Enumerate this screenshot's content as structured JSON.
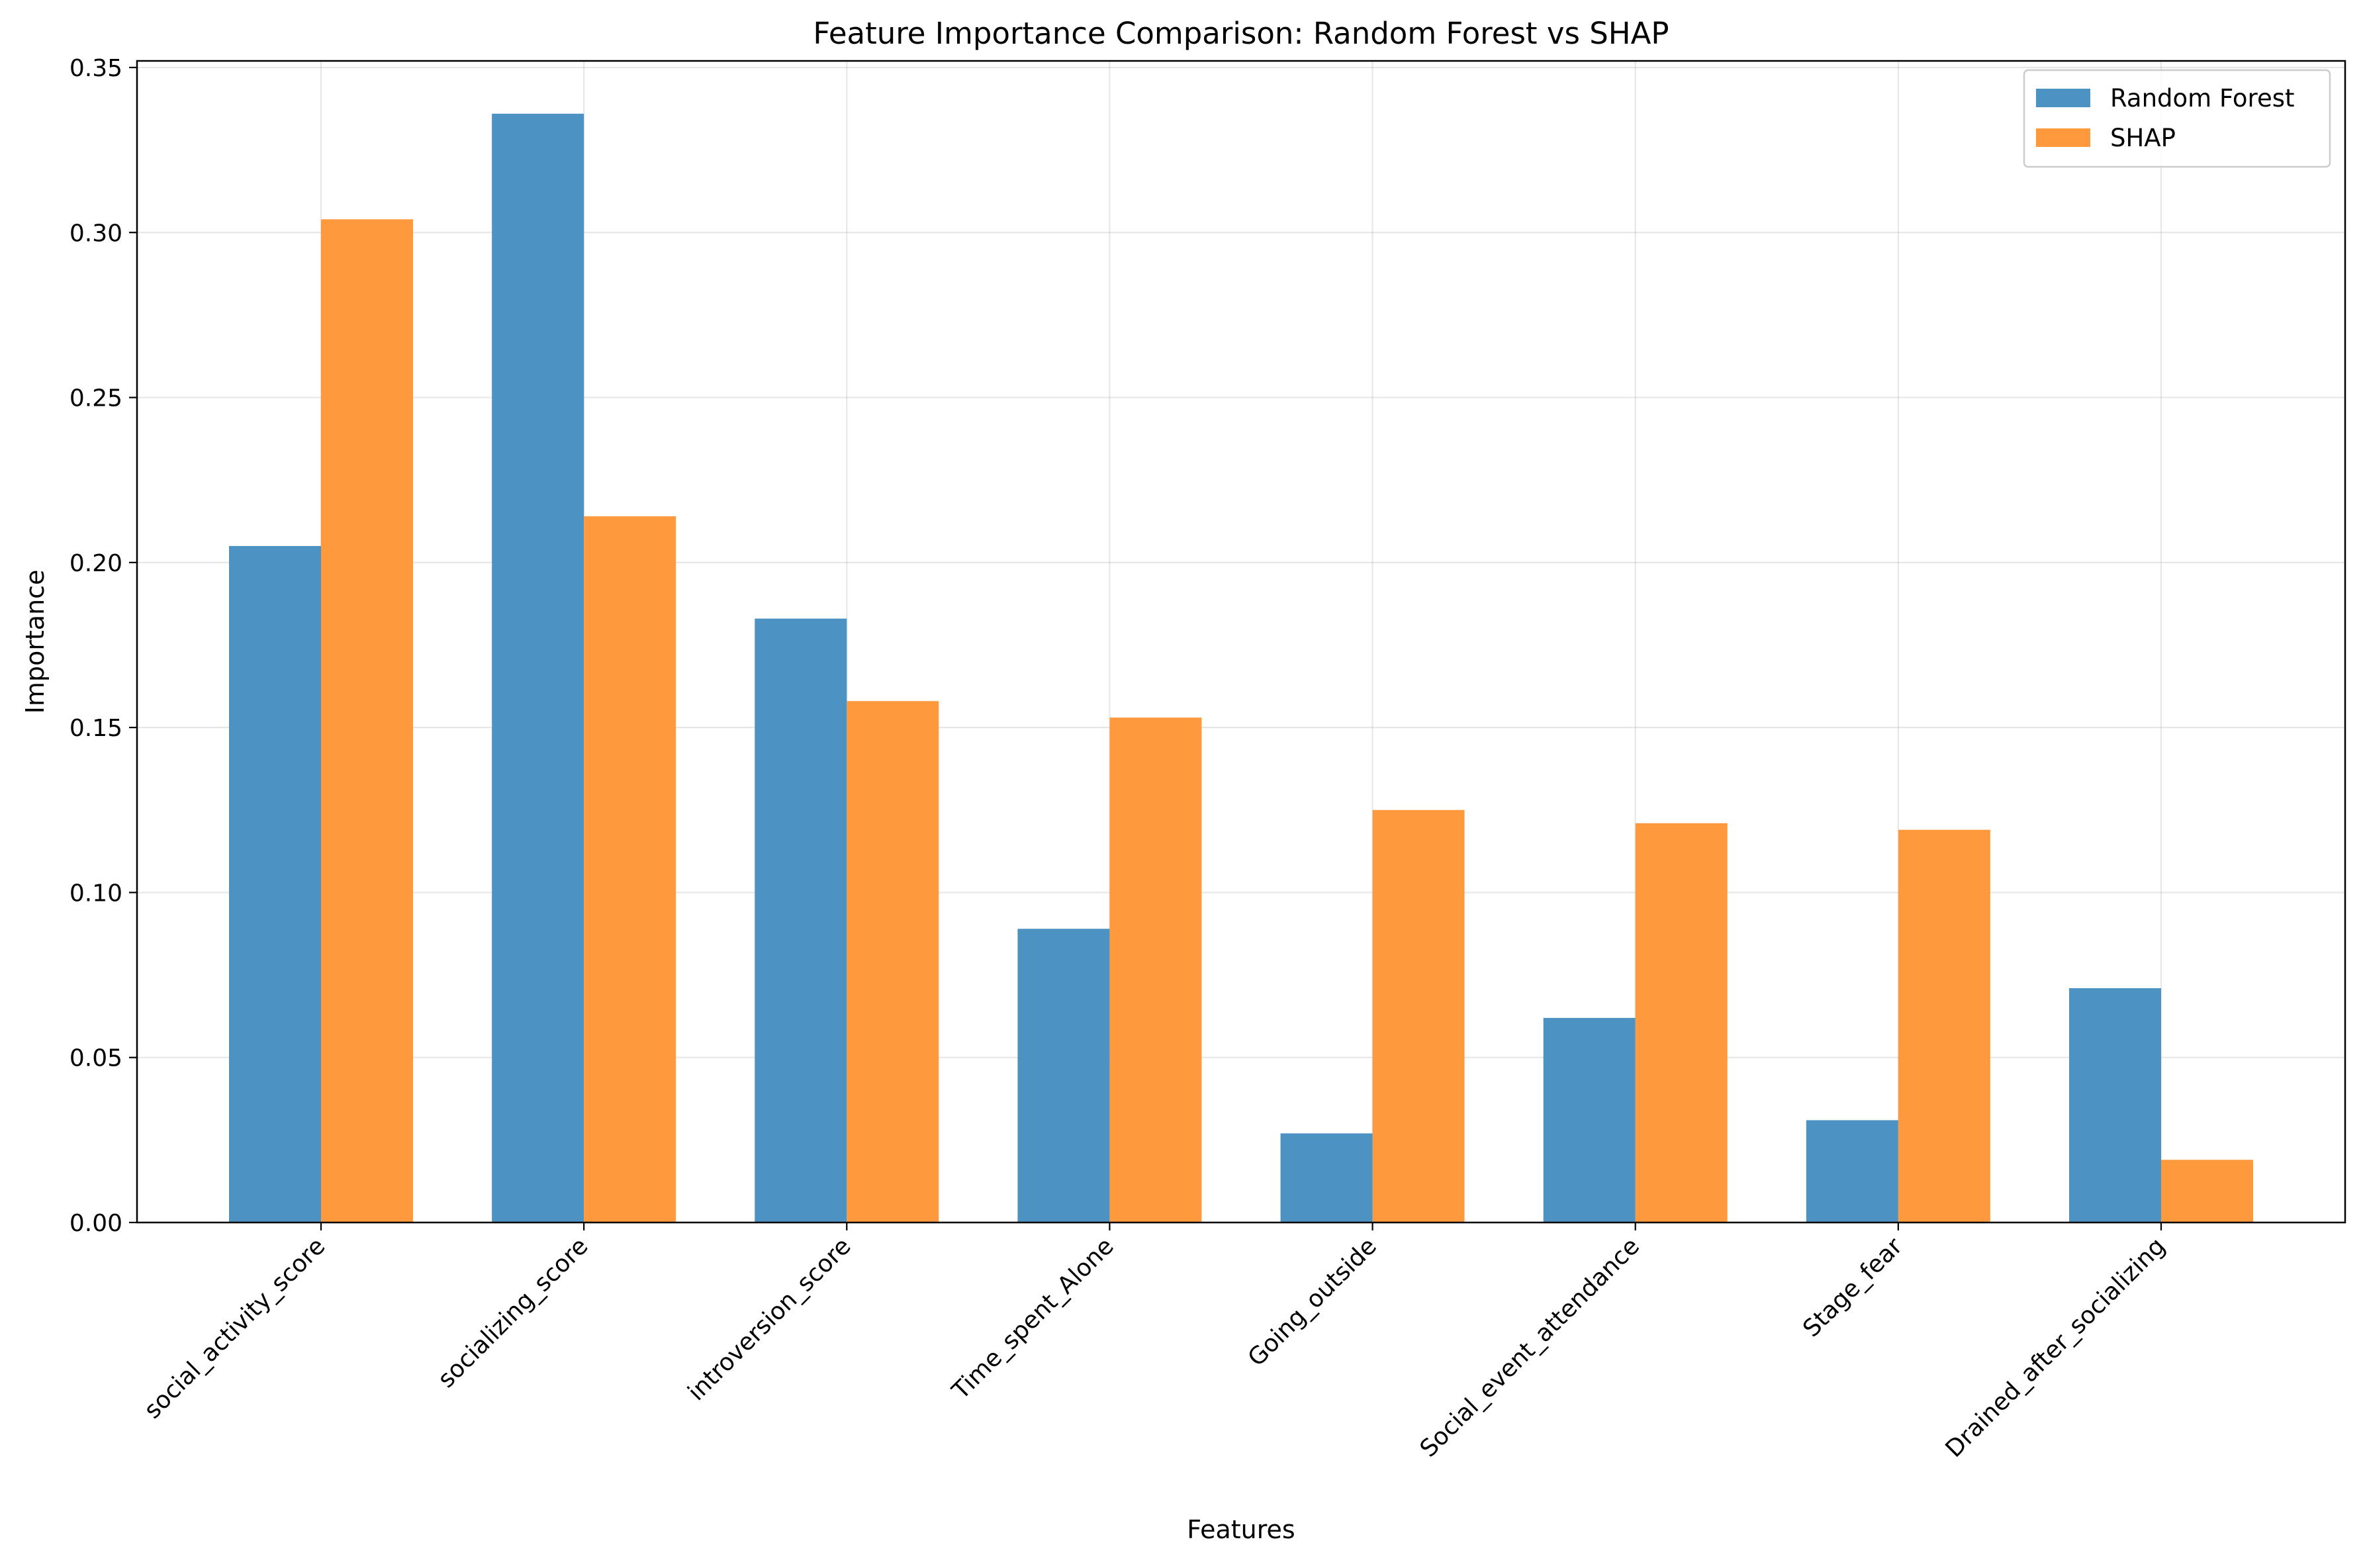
{
  "chart_data": {
    "type": "bar",
    "title": "Feature Importance Comparison: Random Forest vs SHAP",
    "xlabel": "Features",
    "ylabel": "Importance",
    "ylim": [
      0,
      0.352
    ],
    "yticks": [
      "0.00",
      "0.05",
      "0.10",
      "0.15",
      "0.20",
      "0.25",
      "0.30",
      "0.35"
    ],
    "ytick_values": [
      0,
      0.05,
      0.1,
      0.15,
      0.2,
      0.25,
      0.3,
      0.35
    ],
    "grid": true,
    "legend_position": "top-right",
    "categories": [
      "social_activity_score",
      "socializing_score",
      "introversion_score",
      "Time_spent_Alone",
      "Going_outside",
      "Social_event_attendance",
      "Stage_fear",
      "Drained_after_socializing"
    ],
    "series": [
      {
        "name": "Random Forest",
        "color": "#4c92c3",
        "values": [
          0.205,
          0.336,
          0.183,
          0.089,
          0.027,
          0.062,
          0.031,
          0.071
        ]
      },
      {
        "name": "SHAP",
        "color": "#ff993e",
        "values": [
          0.304,
          0.214,
          0.158,
          0.153,
          0.125,
          0.121,
          0.119,
          0.019
        ]
      }
    ]
  }
}
